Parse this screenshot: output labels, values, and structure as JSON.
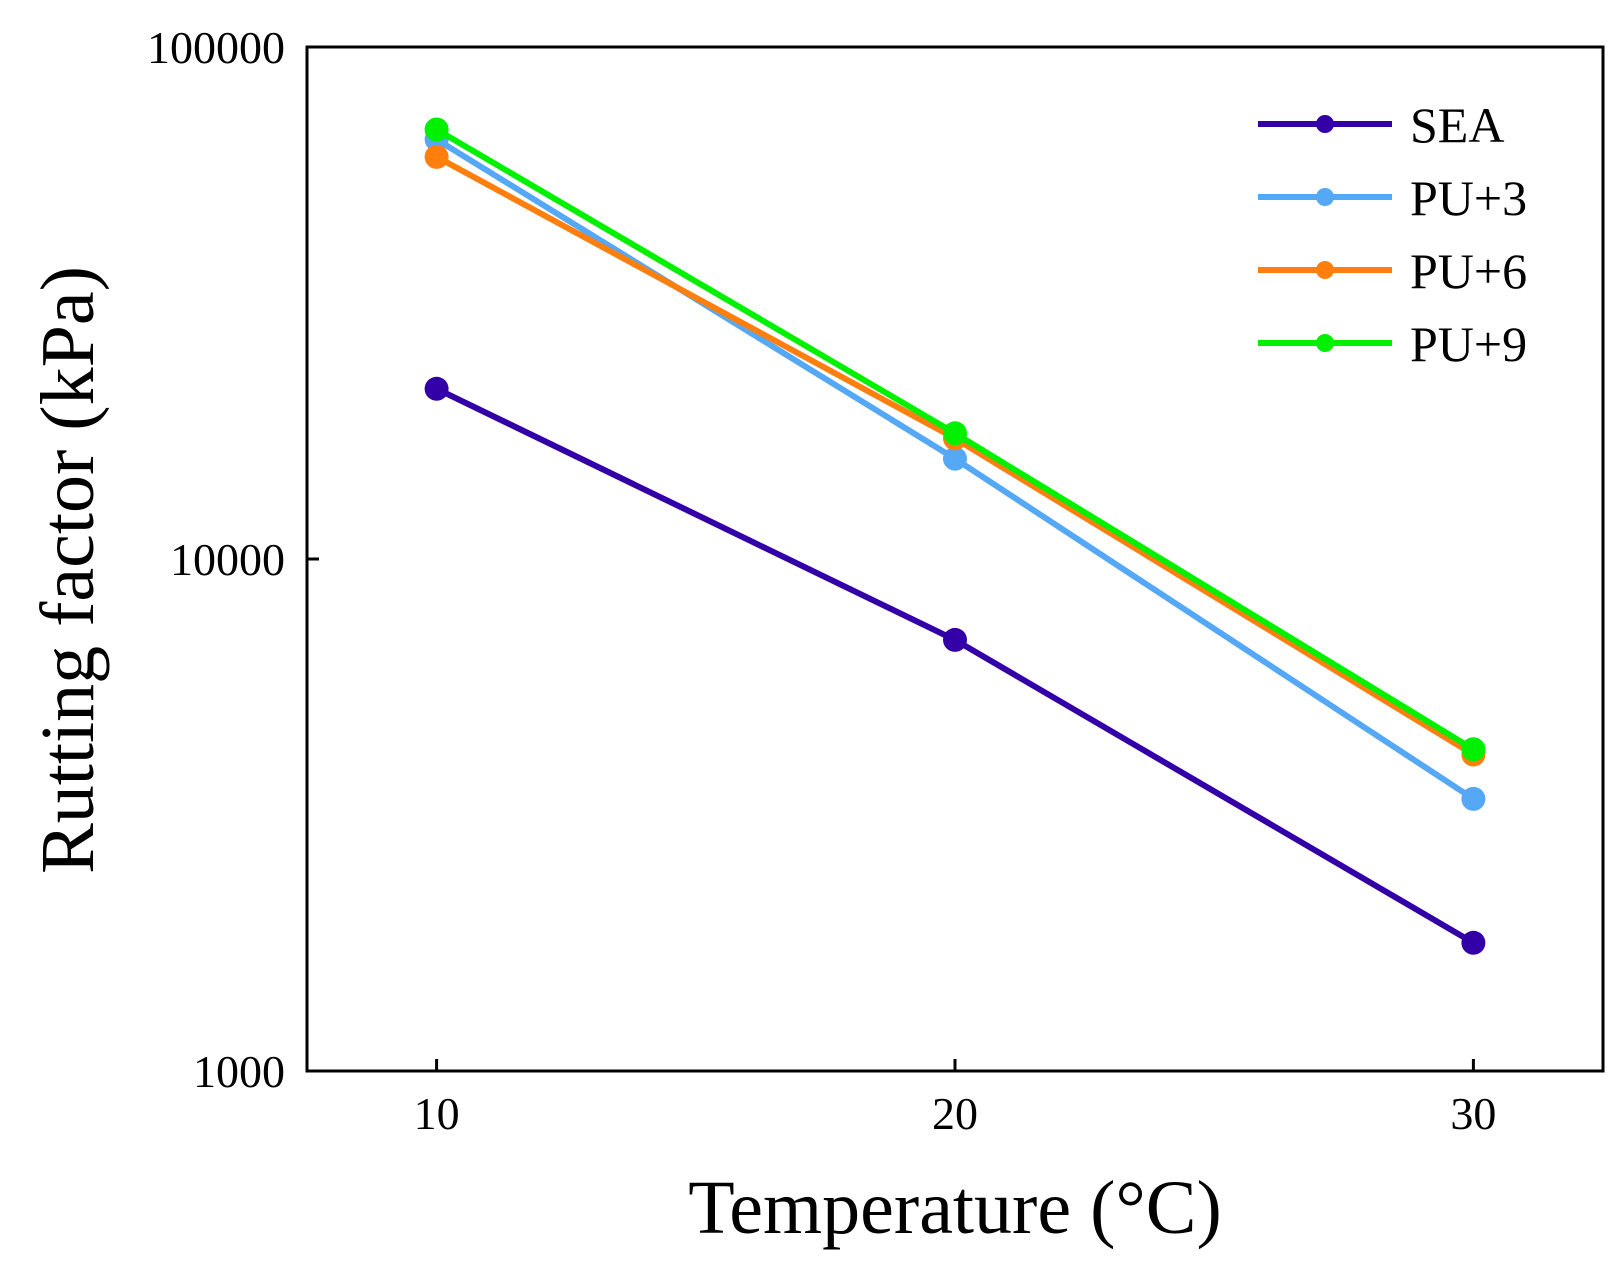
{
  "chart_data": {
    "type": "line",
    "title": "",
    "xlabel": "Temperature (°C)",
    "ylabel": "Rutting factor (kPa)",
    "yscale": "log",
    "x": [
      10,
      20,
      30
    ],
    "xlim": [
      7.5,
      32.5
    ],
    "ylim": [
      1000,
      100000
    ],
    "xticks": [
      10,
      20,
      30
    ],
    "xtick_labels": [
      "10",
      "20",
      "30"
    ],
    "yticks": [
      1000,
      10000,
      100000
    ],
    "ytick_labels": [
      "1000",
      "10000",
      "100000"
    ],
    "grid": false,
    "legend_position": "top-right",
    "series": [
      {
        "name": "SEA",
        "color": "#3300A8",
        "values": [
          21500,
          6950,
          1780
        ]
      },
      {
        "name": "PU+3",
        "color": "#55A8F5",
        "values": [
          66000,
          15700,
          3400
        ]
      },
      {
        "name": "PU+6",
        "color": "#FF7F0E",
        "values": [
          61000,
          17200,
          4150
        ]
      },
      {
        "name": "PU+9",
        "color": "#00F000",
        "values": [
          69000,
          17600,
          4250
        ]
      }
    ]
  }
}
